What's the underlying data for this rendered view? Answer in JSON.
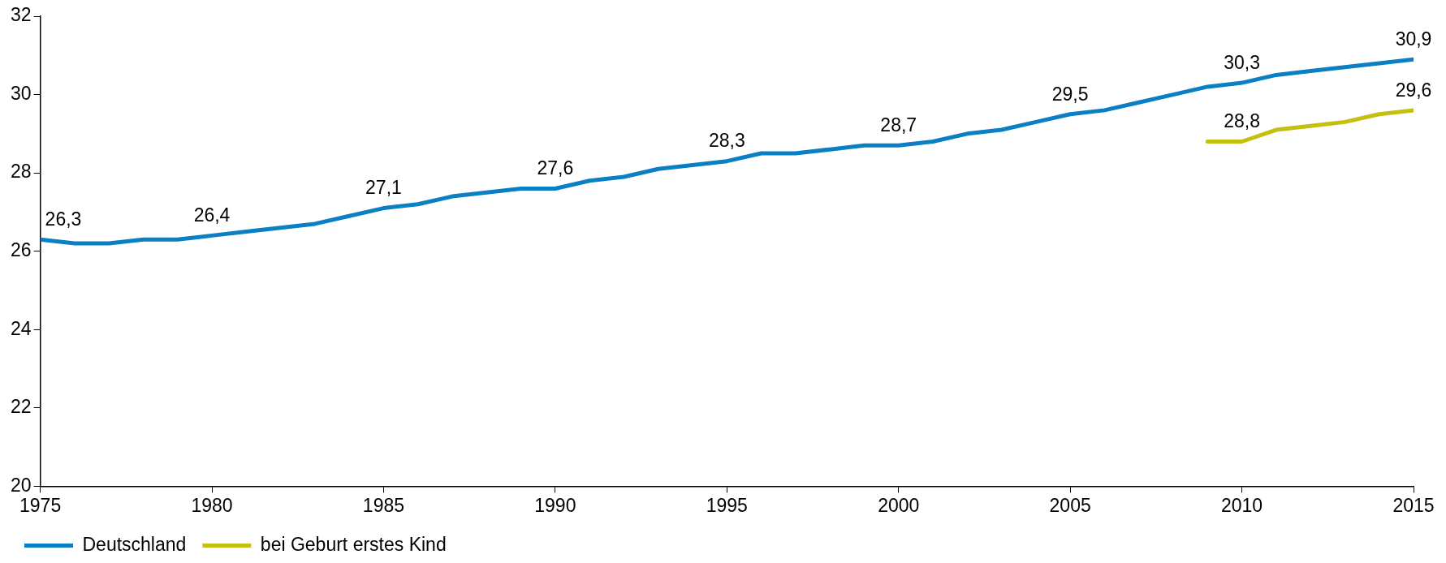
{
  "chart_data": {
    "type": "line",
    "x": [
      1975,
      1976,
      1977,
      1978,
      1979,
      1980,
      1981,
      1982,
      1983,
      1984,
      1985,
      1986,
      1987,
      1988,
      1989,
      1990,
      1991,
      1992,
      1993,
      1994,
      1995,
      1996,
      1997,
      1998,
      1999,
      2000,
      2001,
      2002,
      2003,
      2004,
      2005,
      2006,
      2007,
      2008,
      2009,
      2010,
      2011,
      2012,
      2013,
      2014,
      2015
    ],
    "series": [
      {
        "name": "Deutschland",
        "color": "#0a7fc4",
        "values": [
          26.3,
          26.2,
          26.2,
          26.3,
          26.3,
          26.4,
          26.5,
          26.6,
          26.7,
          26.9,
          27.1,
          27.2,
          27.4,
          27.5,
          27.6,
          27.6,
          27.8,
          27.9,
          28.1,
          28.2,
          28.3,
          28.5,
          28.5,
          28.6,
          28.7,
          28.7,
          28.8,
          29.0,
          29.1,
          29.3,
          29.5,
          29.6,
          29.8,
          30.0,
          30.2,
          30.3,
          30.5,
          30.6,
          30.7,
          30.8,
          30.9
        ],
        "value_labels": [
          "26,3",
          null,
          null,
          null,
          null,
          "26,4",
          null,
          null,
          null,
          null,
          "27,1",
          null,
          null,
          null,
          null,
          "27,6",
          null,
          null,
          null,
          null,
          "28,3",
          null,
          null,
          null,
          null,
          "28,7",
          null,
          null,
          null,
          null,
          "29,5",
          null,
          null,
          null,
          null,
          "30,3",
          null,
          null,
          null,
          null,
          "30,9"
        ]
      },
      {
        "name": "bei Geburt erstes Kind",
        "color": "#c4c012",
        "values": [
          null,
          null,
          null,
          null,
          null,
          null,
          null,
          null,
          null,
          null,
          null,
          null,
          null,
          null,
          null,
          null,
          null,
          null,
          null,
          null,
          null,
          null,
          null,
          null,
          null,
          null,
          null,
          null,
          null,
          null,
          null,
          null,
          null,
          null,
          28.8,
          28.8,
          29.1,
          29.2,
          29.3,
          29.5,
          29.6
        ],
        "value_labels": [
          null,
          null,
          null,
          null,
          null,
          null,
          null,
          null,
          null,
          null,
          null,
          null,
          null,
          null,
          null,
          null,
          null,
          null,
          null,
          null,
          null,
          null,
          null,
          null,
          null,
          null,
          null,
          null,
          null,
          null,
          null,
          null,
          null,
          null,
          null,
          "28,8",
          null,
          null,
          null,
          null,
          "29,6"
        ]
      }
    ],
    "xlim": [
      1975,
      2015
    ],
    "xticks": [
      1975,
      1980,
      1985,
      1990,
      1995,
      2000,
      2005,
      2010,
      2015
    ],
    "ylim": [
      20,
      32
    ],
    "yticks": [
      20,
      22,
      24,
      26,
      28,
      30,
      32
    ],
    "grid": false,
    "legend": "bottom left",
    "marker": "none",
    "line_style": "solid"
  }
}
